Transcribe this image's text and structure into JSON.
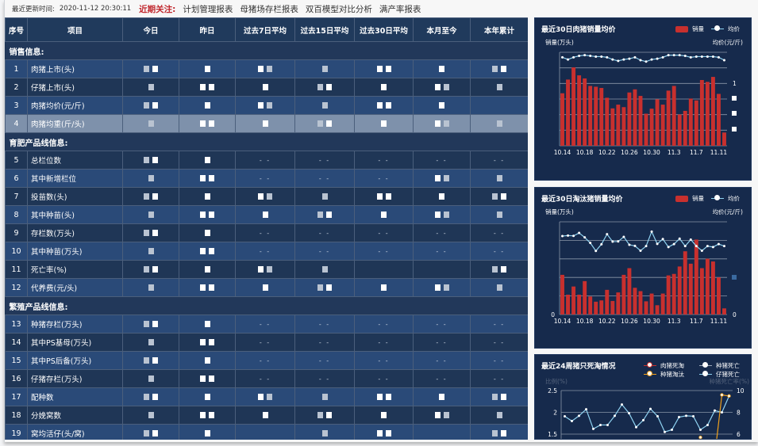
{
  "topbar": {
    "update_label": "最近更新时间:",
    "update_time": "2020-11-12 20:30:11",
    "focus_label": "近期关注:",
    "links": [
      "计划管理报表",
      "母猪场存栏报表",
      "双百模型对比分析",
      "满产率报表"
    ]
  },
  "table": {
    "headers": [
      "序号",
      "项目",
      "今日",
      "昨日",
      "过去7日平均",
      "过去15日平均",
      "过去30日平均",
      "本月至今",
      "本年累计"
    ],
    "sections": [
      {
        "title": "销售信息:",
        "rows": [
          {
            "no": "1",
            "name": "肉猪上市(头)",
            "cells": [
              null,
              null,
              null,
              null,
              null,
              null,
              null
            ]
          },
          {
            "no": "2",
            "name": "仔猪上市(头)",
            "cells": [
              null,
              null,
              null,
              null,
              null,
              null,
              null
            ]
          },
          {
            "no": "3",
            "name": "肉猪均价(元/斤)",
            "cells": [
              null,
              null,
              null,
              null,
              null,
              null,
              ""
            ]
          },
          {
            "no": "4",
            "name": "肉猪均重(斤/头)",
            "cells": [
              null,
              null,
              null,
              null,
              null,
              null,
              null
            ],
            "highlighted": true
          }
        ]
      },
      {
        "title": "育肥产品线信息:",
        "rows": [
          {
            "no": "5",
            "name": "总栏位数",
            "cells": [
              null,
              null,
              "- -",
              "- -",
              "- -",
              "- -",
              "- -"
            ]
          },
          {
            "no": "6",
            "name": "其中新增栏位",
            "cells": [
              null,
              null,
              "- -",
              "- -",
              "- -",
              null,
              null
            ]
          },
          {
            "no": "7",
            "name": "投苗数(头)",
            "cells": [
              null,
              null,
              null,
              null,
              null,
              null,
              null
            ]
          },
          {
            "no": "8",
            "name": "其中种苗(头)",
            "cells": [
              null,
              null,
              null,
              null,
              null,
              null,
              null
            ]
          },
          {
            "no": "9",
            "name": "存栏数(万头)",
            "cells": [
              null,
              null,
              "- -",
              "- -",
              "- -",
              "- -",
              "- -"
            ]
          },
          {
            "no": "10",
            "name": "其中种苗(万头)",
            "cells": [
              null,
              null,
              "- -",
              "- -",
              "- -",
              "- -",
              "- -"
            ]
          },
          {
            "no": "11",
            "name": "死亡率(%)",
            "cells": [
              null,
              null,
              null,
              null,
              "",
              "",
              null
            ]
          },
          {
            "no": "12",
            "name": "代养费(元/头)",
            "cells": [
              null,
              null,
              null,
              null,
              null,
              null,
              null
            ]
          }
        ]
      },
      {
        "title": "繁殖产品线信息:",
        "rows": [
          {
            "no": "13",
            "name": "种猪存栏(万头)",
            "cells": [
              null,
              null,
              "- -",
              "- -",
              "- -",
              "- -",
              "- -"
            ]
          },
          {
            "no": "14",
            "name": "其中PS基母(万头)",
            "cells": [
              null,
              null,
              "- -",
              "- -",
              "- -",
              "- -",
              "- -"
            ]
          },
          {
            "no": "15",
            "name": "其中PS后备(万头)",
            "cells": [
              null,
              null,
              "- -",
              "- -",
              "- -",
              "- -",
              "- -"
            ]
          },
          {
            "no": "16",
            "name": "仔猪存栏(万头)",
            "cells": [
              null,
              null,
              "- -",
              "- -",
              "- -",
              "- -",
              "- -"
            ]
          },
          {
            "no": "17",
            "name": "配种数",
            "cells": [
              null,
              null,
              null,
              null,
              null,
              null,
              null
            ]
          },
          {
            "no": "18",
            "name": "分娩窝数",
            "cells": [
              null,
              null,
              null,
              null,
              null,
              null,
              null
            ]
          },
          {
            "no": "19",
            "name": "窝均活仔(头/窝)",
            "cells": [
              null,
              null,
              "",
              null,
              null,
              "",
              null
            ]
          }
        ]
      }
    ]
  },
  "chart_data": [
    {
      "type": "bar+line",
      "title": "最近30日肉猪销量均价",
      "ylabel": "销量(万头)",
      "y2label": "均价(元/斤)",
      "legend": [
        "销量",
        "均价"
      ],
      "legend_position": "top-right",
      "grid": true,
      "right_ticks": [
        "1"
      ],
      "x": [
        "10.14",
        "10.15",
        "10.16",
        "10.17",
        "10.18",
        "10.19",
        "10.20",
        "10.21",
        "10.22",
        "10.23",
        "10.24",
        "10.25",
        "10.26",
        "10.27",
        "10.28",
        "10.29",
        "10.30",
        "10.31",
        "11.1",
        "11.2",
        "11.3",
        "11.4",
        "11.5",
        "11.6",
        "11.7",
        "11.8",
        "11.9",
        "11.10",
        "11.11",
        "11.12"
      ],
      "xticks": [
        "10.14",
        "10.18",
        "10.22",
        "10.26",
        "10.30",
        "11.3",
        "11.7",
        "11.11"
      ],
      "series": [
        {
          "name": "销量",
          "type": "bar",
          "values": [
            3.37,
            4.25,
            5.03,
            4.52,
            4.32,
            3.84,
            3.79,
            3.71,
            3.08,
            2.4,
            2.64,
            2.48,
            3.42,
            3.62,
            3.2,
            2.06,
            2.38,
            2.98,
            2.64,
            3.54,
            3.84,
            2.01,
            2.24,
            3.03,
            2.91,
            4.22,
            4.1,
            4.42,
            3.33,
            0.85
          ]
        },
        {
          "name": "均价",
          "type": "line",
          "values": [
            1.23,
            1.2,
            1.23,
            1.25,
            1.26,
            1.25,
            1.24,
            1.24,
            1.23,
            1.2,
            1.18,
            1.2,
            1.21,
            1.23,
            1.19,
            1.17,
            1.2,
            1.21,
            1.23,
            1.26,
            1.26,
            1.26,
            1.25,
            1.23,
            1.24,
            1.24,
            1.24,
            1.24,
            1.23,
            1.19
          ]
        }
      ],
      "colors": {
        "bar": "#c8302e",
        "line": "#8fd3f2"
      }
    },
    {
      "type": "bar+line",
      "title": "最近30日淘汰猪销量均价",
      "ylabel": "销量(万头)",
      "y2label": "均价(元/斤)",
      "legend": [
        "销量",
        "均价"
      ],
      "legend_position": "top-right",
      "grid": true,
      "left_ticks": [
        "0"
      ],
      "right_ticks": [
        "0"
      ],
      "x": [
        "10.14",
        "10.15",
        "10.16",
        "10.17",
        "10.18",
        "10.19",
        "10.20",
        "10.21",
        "10.22",
        "10.23",
        "10.24",
        "10.25",
        "10.26",
        "10.27",
        "10.28",
        "10.29",
        "10.30",
        "10.31",
        "11.1",
        "11.2",
        "11.3",
        "11.4",
        "11.5",
        "11.6",
        "11.7",
        "11.8",
        "11.9",
        "11.10",
        "11.11",
        "11.12"
      ],
      "xticks": [
        "10.14",
        "10.18",
        "10.22",
        "10.26",
        "10.30",
        "11.3",
        "11.7",
        "11.11"
      ],
      "series": [
        {
          "name": "销量",
          "type": "bar",
          "values": [
            2.14,
            1.07,
            1.51,
            1.07,
            1.8,
            0.97,
            0.69,
            0.76,
            1.33,
            0.73,
            1.19,
            2.14,
            2.5,
            1.44,
            1.26,
            0.71,
            1.13,
            0.5,
            1.13,
            2.11,
            2.19,
            2.59,
            3.41,
            2.74,
            4.04,
            2.5,
            3.01,
            2.86,
            2.0,
            0.33
          ]
        },
        {
          "name": "均价",
          "type": "line",
          "values": [
            4.23,
            4.26,
            4.24,
            4.4,
            4.16,
            3.86,
            3.43,
            3.79,
            4.33,
            3.93,
            3.94,
            4.19,
            3.76,
            3.7,
            3.44,
            3.69,
            4.47,
            3.81,
            4.07,
            3.64,
            3.8,
            4.09,
            3.69,
            4.04,
            3.69,
            3.44,
            3.69,
            3.64,
            3.8,
            3.69
          ]
        }
      ],
      "colors": {
        "bar": "#c8302e",
        "line": "#8fd3f2"
      }
    },
    {
      "type": "line",
      "title": "最近24周猪只死淘情况",
      "ylabel": "比例(%)",
      "y2label": "种猪死亡率(%)",
      "legend": [
        "肉猪死淘",
        "种猪死亡",
        "种猪淘汰",
        "仔猪死亡"
      ],
      "legend_position": "top-right",
      "grid": true,
      "left_ticks": [
        "2.5",
        "2",
        "1.5"
      ],
      "right_ticks": [
        "10",
        "8",
        "6"
      ],
      "ylim_visible": [
        1.5,
        2.5
      ],
      "y2lim_visible": [
        6,
        10
      ],
      "series": [
        {
          "name": "仔猪死亡",
          "axis": "left",
          "values": [
            1.91,
            1.8,
            1.92,
            2.07,
            1.62,
            1.71,
            1.71,
            1.92,
            2.18,
            1.98,
            1.66,
            1.82,
            2.08,
            1.91,
            1.55,
            1.6,
            1.89,
            1.92,
            1.91,
            1.6,
            1.71,
            2.04,
            2.0,
            2.37
          ]
        },
        {
          "name": "种猪淘汰",
          "axis": "right",
          "values": [
            null,
            null,
            null,
            null,
            null,
            null,
            null,
            null,
            null,
            null,
            null,
            null,
            null,
            null,
            null,
            null,
            null,
            null,
            null,
            5.7,
            null,
            4.0,
            9.6,
            9.5
          ]
        }
      ],
      "colors": {
        "肉猪死淘": "#c8302e",
        "种猪死亡": "#ffffff",
        "种猪淘汰": "#f0a01c",
        "仔猪死亡": "#8fd3f2"
      }
    }
  ]
}
